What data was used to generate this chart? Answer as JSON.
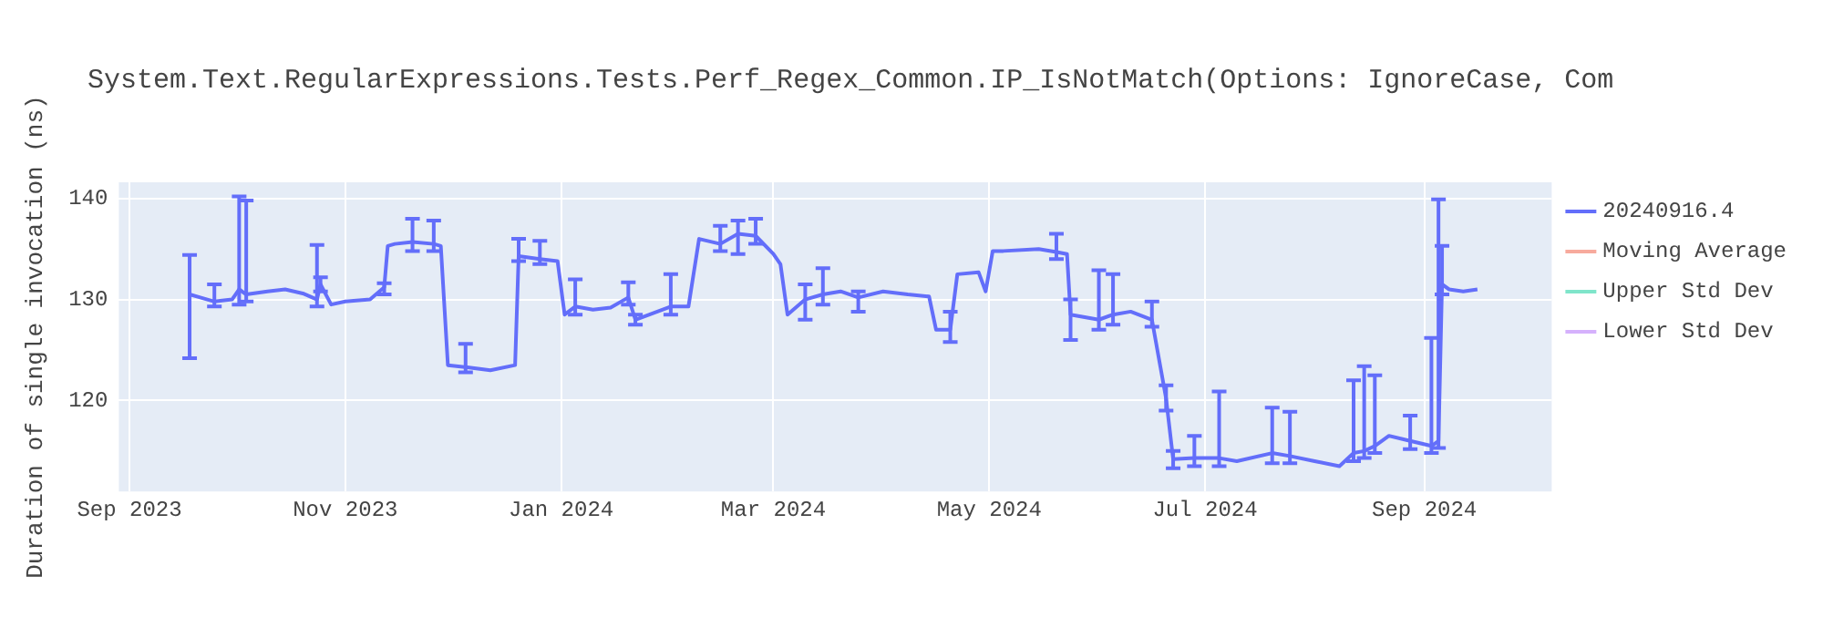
{
  "chart_data": {
    "type": "line",
    "title": "System.Text.RegularExpressions.Tests.Perf_Regex_Common.IP_IsNotMatch(Options: IgnoreCase, Com",
    "ylabel": "Duration of single invocation (ns)",
    "xlim": [
      "2023-08-29",
      "2024-10-07"
    ],
    "xticks": [
      {
        "value": "2023-09-01",
        "label": "Sep 2023"
      },
      {
        "value": "2023-11-01",
        "label": "Nov 2023"
      },
      {
        "value": "2024-01-01",
        "label": "Jan 2024"
      },
      {
        "value": "2024-03-01",
        "label": "Mar 2024"
      },
      {
        "value": "2024-05-01",
        "label": "May 2024"
      },
      {
        "value": "2024-07-01",
        "label": "Jul 2024"
      },
      {
        "value": "2024-09-01",
        "label": "Sep 2024"
      }
    ],
    "ylim": [
      111,
      141.6
    ],
    "yticks": [
      120,
      130,
      140
    ],
    "grid": true,
    "legend": "top right",
    "marker": "none",
    "line_style": "solid",
    "series": [
      {
        "name": "20240916.4",
        "color": "#636efa",
        "x": [
          "2023-09-18",
          "2023-09-21",
          "2023-09-25",
          "2023-09-30",
          "2023-10-02",
          "2023-10-04",
          "2023-10-10",
          "2023-10-15",
          "2023-10-20",
          "2023-10-24",
          "2023-10-25",
          "2023-10-28",
          "2023-11-01",
          "2023-11-08",
          "2023-11-12",
          "2023-11-13",
          "2023-11-15",
          "2023-11-20",
          "2023-11-26",
          "2023-11-28",
          "2023-11-30",
          "2023-12-05",
          "2023-12-12",
          "2023-12-19",
          "2023-12-20",
          "2023-12-26",
          "2023-12-31",
          "2024-01-02",
          "2024-01-05",
          "2024-01-10",
          "2024-01-15",
          "2024-01-20",
          "2024-01-22",
          "2024-02-01",
          "2024-02-06",
          "2024-02-09",
          "2024-02-15",
          "2024-02-20",
          "2024-02-25",
          "2024-03-01",
          "2024-03-03",
          "2024-03-05",
          "2024-03-10",
          "2024-03-15",
          "2024-03-20",
          "2024-03-25",
          "2024-04-01",
          "2024-04-08",
          "2024-04-14",
          "2024-04-16",
          "2024-04-20",
          "2024-04-22",
          "2024-04-28",
          "2024-04-30",
          "2024-05-02",
          "2024-05-05",
          "2024-05-15",
          "2024-05-20",
          "2024-05-23",
          "2024-05-24",
          "2024-06-01",
          "2024-06-05",
          "2024-06-10",
          "2024-06-16",
          "2024-06-20",
          "2024-06-22",
          "2024-06-28",
          "2024-07-05",
          "2024-07-10",
          "2024-07-20",
          "2024-07-25",
          "2024-08-01",
          "2024-08-08",
          "2024-08-12",
          "2024-08-15",
          "2024-08-18",
          "2024-08-22",
          "2024-08-28",
          "2024-09-03",
          "2024-09-05",
          "2024-09-06",
          "2024-09-08",
          "2024-09-12",
          "2024-09-16"
        ],
        "values": [
          130.5,
          130.2,
          129.8,
          130.0,
          131.0,
          130.5,
          130.8,
          131.0,
          130.6,
          130.0,
          131.5,
          129.5,
          129.8,
          130.0,
          131.2,
          135.3,
          135.5,
          135.7,
          135.5,
          135.3,
          123.5,
          123.3,
          123.0,
          123.5,
          134.3,
          134.0,
          133.8,
          128.5,
          129.3,
          129.0,
          129.2,
          130.2,
          128.0,
          129.3,
          129.3,
          136.0,
          135.5,
          136.5,
          136.3,
          134.5,
          133.5,
          128.5,
          130.0,
          130.5,
          130.8,
          130.2,
          130.8,
          130.5,
          130.3,
          127.0,
          127.0,
          132.5,
          132.7,
          130.8,
          134.8,
          134.8,
          135.0,
          134.7,
          134.5,
          128.5,
          128.0,
          128.5,
          128.8,
          128.0,
          120.2,
          114.2,
          114.3,
          114.3,
          114.0,
          114.8,
          114.5,
          114.0,
          113.5,
          114.8,
          115.0,
          115.5,
          116.5,
          116.0,
          115.5,
          116.0,
          131.5,
          131.0,
          130.8,
          131.0
        ],
        "errors": [
          [
            124.2,
            134.4
          ],
          null,
          [
            129.3,
            131.5
          ],
          null,
          [
            129.5,
            140.2
          ],
          [
            129.8,
            139.8
          ],
          null,
          null,
          null,
          [
            129.3,
            135.4
          ],
          [
            130.8,
            132.2
          ],
          null,
          null,
          null,
          [
            130.5,
            131.6
          ],
          null,
          null,
          [
            134.8,
            138.0
          ],
          [
            134.8,
            137.8
          ],
          null,
          null,
          [
            122.8,
            125.6
          ],
          null,
          null,
          [
            133.8,
            136.0
          ],
          [
            133.5,
            135.8
          ],
          null,
          null,
          [
            128.5,
            132.0
          ],
          null,
          null,
          [
            129.5,
            131.7
          ],
          [
            127.5,
            128.5
          ],
          [
            128.5,
            132.5
          ],
          null,
          null,
          [
            134.8,
            137.3
          ],
          [
            134.5,
            137.8
          ],
          [
            135.5,
            138.0
          ],
          null,
          null,
          null,
          [
            128.0,
            131.5
          ],
          [
            129.5,
            133.1
          ],
          null,
          [
            128.8,
            130.8
          ],
          null,
          null,
          null,
          null,
          [
            125.8,
            128.8
          ],
          null,
          null,
          null,
          null,
          null,
          null,
          [
            134.0,
            136.5
          ],
          null,
          [
            126.0,
            130.0
          ],
          [
            127.0,
            132.9
          ],
          [
            127.5,
            132.5
          ],
          null,
          [
            127.3,
            129.8
          ],
          [
            119.0,
            121.5
          ],
          [
            113.3,
            115.0
          ],
          [
            113.5,
            116.5
          ],
          [
            113.5,
            120.9
          ],
          null,
          [
            113.8,
            119.3
          ],
          [
            113.8,
            118.9
          ],
          null,
          null,
          [
            114.0,
            122.0
          ],
          [
            114.3,
            123.4
          ],
          [
            114.8,
            122.5
          ],
          null,
          [
            115.2,
            118.5
          ],
          [
            114.8,
            126.2
          ],
          [
            115.3,
            139.9
          ],
          [
            130.5,
            135.3
          ],
          null,
          null,
          null
        ]
      },
      {
        "name": "Moving Average",
        "color": "#f7aa9d"
      },
      {
        "name": "Upper Std Dev",
        "color": "#7fe5ca"
      },
      {
        "name": "Lower Std Dev",
        "color": "#d5b1fc"
      }
    ]
  }
}
